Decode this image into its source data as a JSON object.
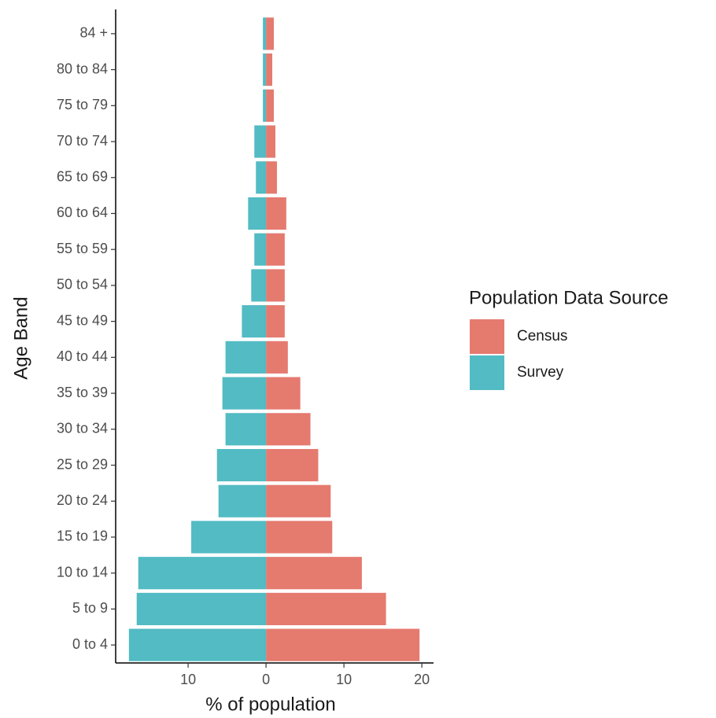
{
  "chart_data": {
    "type": "bar",
    "orientation": "horizontal",
    "stacked": false,
    "xlabel": "% of population",
    "ylabel": "Age Band",
    "legend_title": "Population Data Source",
    "legend_position": "right",
    "categories": [
      "0 to 4",
      "5 to 9",
      "10 to 14",
      "15 to 19",
      "20 to 24",
      "25 to 29",
      "30 to 34",
      "35 to 39",
      "40 to 44",
      "45 to 49",
      "50 to 54",
      "55 to 59",
      "60 to 64",
      "65 to 69",
      "70 to 74",
      "75 to 79",
      "80 to 84",
      "84 +"
    ],
    "series": [
      {
        "name": "Census",
        "color": "#e57a6f",
        "values": [
          19.7,
          15.4,
          12.3,
          8.5,
          8.3,
          6.7,
          5.7,
          4.4,
          2.8,
          2.4,
          2.4,
          2.4,
          2.6,
          1.4,
          1.2,
          1.0,
          0.8,
          1.0
        ]
      },
      {
        "name": "Survey",
        "color": "#52bbc3",
        "values": [
          -17.6,
          -16.6,
          -16.4,
          -9.6,
          -6.1,
          -6.3,
          -5.2,
          -5.6,
          -5.2,
          -3.1,
          -1.9,
          -1.5,
          -2.3,
          -1.3,
          -1.5,
          -0.4,
          -0.4,
          -0.4
        ]
      }
    ],
    "xlim": [
      -19.3,
      21.5
    ],
    "xticks": [
      {
        "value": -10,
        "label": "10"
      },
      0,
      10,
      20
    ],
    "grid": false
  }
}
